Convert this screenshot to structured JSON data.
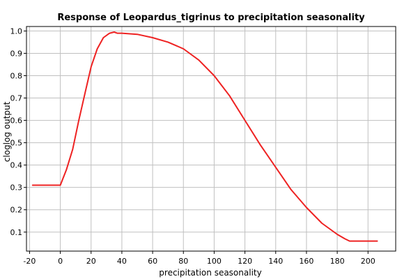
{
  "chart_data": {
    "type": "line",
    "title": "Response of Leopardus_tigrinus to precipitation seasonality",
    "xlabel": "precipitation seasonality",
    "ylabel": "cloglog output",
    "xlim": [
      -22,
      218
    ],
    "ylim": [
      0.015,
      1.02
    ],
    "xticks": [
      -20,
      0,
      20,
      40,
      60,
      80,
      100,
      120,
      140,
      160,
      180,
      200
    ],
    "xtick_labels": [
      "-20",
      "0",
      "20",
      "40",
      "60",
      "80",
      "100",
      "120",
      "140",
      "160",
      "180",
      "200"
    ],
    "yticks": [
      0.1,
      0.2,
      0.3,
      0.4,
      0.5,
      0.6,
      0.7,
      0.8,
      0.9,
      1.0
    ],
    "ytick_labels": [
      "0.1",
      "0.2",
      "0.3",
      "0.4",
      "0.5",
      "0.6",
      "0.7",
      "0.8",
      "0.9",
      "1.0"
    ],
    "grid": true,
    "series": [
      {
        "color": "#ee2222",
        "x": [
          -18,
          -5,
          0,
          4,
          8,
          12,
          16,
          20,
          24,
          28,
          32,
          35,
          37,
          40,
          50,
          60,
          70,
          80,
          90,
          100,
          110,
          120,
          130,
          140,
          150,
          160,
          170,
          180,
          185,
          188,
          196,
          206
        ],
        "y": [
          0.31,
          0.31,
          0.31,
          0.38,
          0.47,
          0.6,
          0.72,
          0.84,
          0.92,
          0.97,
          0.99,
          0.995,
          0.99,
          0.99,
          0.985,
          0.97,
          0.95,
          0.92,
          0.87,
          0.8,
          0.71,
          0.6,
          0.49,
          0.39,
          0.29,
          0.21,
          0.14,
          0.09,
          0.07,
          0.06,
          0.06,
          0.06
        ]
      }
    ]
  }
}
